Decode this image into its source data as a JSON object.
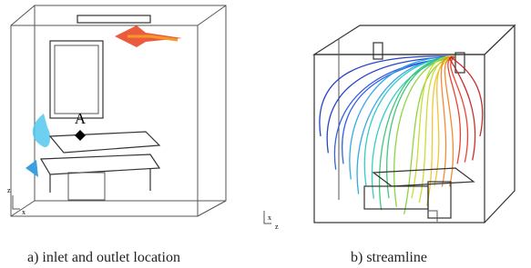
{
  "figure": {
    "left": {
      "point_label": "A",
      "axis_labels": [
        "x",
        "z"
      ],
      "caption": "a) inlet and outlet location"
    },
    "right": {
      "axis_labels": [
        "x",
        "z"
      ],
      "caption": "b) streamline"
    }
  }
}
